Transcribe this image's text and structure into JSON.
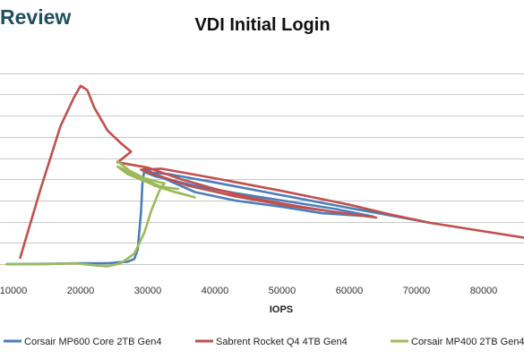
{
  "brand": {
    "text": "Review"
  },
  "chart_data": {
    "type": "line",
    "title": "VDI Initial Login",
    "xlabel": "IOPS",
    "ylabel": "",
    "xlim": [
      8000,
      86000
    ],
    "ylim": [
      0,
      10.5
    ],
    "x_ticks": [
      10000,
      20000,
      30000,
      40000,
      50000,
      60000,
      70000,
      80000
    ],
    "y_gridlines": [
      0.5,
      1.5,
      2.5,
      3.5,
      4.5,
      5.5,
      6.5,
      7.5,
      8.5,
      9.5
    ],
    "grid": true,
    "legend_position": "bottom",
    "series": [
      {
        "name": "Corsair MP600 Core 2TB Gen4",
        "color": "#4a7ebb",
        "points": [
          [
            9000,
            0.5
          ],
          [
            15000,
            0.52
          ],
          [
            20000,
            0.55
          ],
          [
            24000,
            0.55
          ],
          [
            27000,
            0.62
          ],
          [
            28000,
            0.75
          ],
          [
            28500,
            1.2
          ],
          [
            29000,
            3.0
          ],
          [
            29200,
            4.3
          ],
          [
            29500,
            5.0
          ],
          [
            32000,
            4.6
          ],
          [
            37000,
            3.9
          ],
          [
            43000,
            3.5
          ],
          [
            50000,
            3.2
          ],
          [
            56000,
            2.9
          ],
          [
            63500,
            2.75
          ],
          [
            58000,
            3.1
          ],
          [
            50000,
            3.5
          ],
          [
            43000,
            3.85
          ],
          [
            37000,
            4.2
          ],
          [
            31000,
            4.65
          ],
          [
            29500,
            4.85
          ],
          [
            33000,
            4.75
          ],
          [
            40000,
            4.35
          ],
          [
            50000,
            3.75
          ],
          [
            60000,
            3.15
          ],
          [
            67000,
            2.75
          ],
          [
            72000,
            2.45
          ]
        ]
      },
      {
        "name": "Sabrent Rocket Q4 4TB Gen4",
        "color": "#c0504d",
        "points": [
          [
            11000,
            0.8
          ],
          [
            14000,
            4.0
          ],
          [
            17000,
            7.0
          ],
          [
            19000,
            8.35
          ],
          [
            20000,
            8.9
          ],
          [
            21000,
            8.7
          ],
          [
            22000,
            7.9
          ],
          [
            24000,
            6.8
          ],
          [
            26000,
            6.2
          ],
          [
            27500,
            5.8
          ],
          [
            25500,
            5.3
          ],
          [
            30000,
            5.05
          ],
          [
            35000,
            4.5
          ],
          [
            40000,
            4.05
          ],
          [
            45000,
            3.65
          ],
          [
            52000,
            3.25
          ],
          [
            57000,
            3.0
          ],
          [
            64000,
            2.7
          ],
          [
            58000,
            2.95
          ],
          [
            50000,
            3.3
          ],
          [
            43000,
            3.7
          ],
          [
            36000,
            4.2
          ],
          [
            29000,
            4.95
          ],
          [
            32000,
            5.0
          ],
          [
            40000,
            4.55
          ],
          [
            50000,
            3.95
          ],
          [
            60000,
            3.3
          ],
          [
            66000,
            2.85
          ],
          [
            72000,
            2.45
          ],
          [
            78000,
            2.15
          ],
          [
            86000,
            1.75
          ]
        ]
      },
      {
        "name": "Corsair MP400 2TB Gen4",
        "color": "#9bbb59",
        "points": [
          [
            9000,
            0.5
          ],
          [
            15000,
            0.5
          ],
          [
            19000,
            0.55
          ],
          [
            22000,
            0.45
          ],
          [
            24000,
            0.4
          ],
          [
            26000,
            0.55
          ],
          [
            28000,
            1.0
          ],
          [
            29500,
            2.0
          ],
          [
            30500,
            3.0
          ],
          [
            31500,
            3.8
          ],
          [
            32000,
            4.15
          ],
          [
            32500,
            4.3
          ],
          [
            29500,
            4.55
          ],
          [
            27000,
            4.95
          ],
          [
            25500,
            5.35
          ],
          [
            28500,
            4.6
          ],
          [
            31000,
            4.2
          ],
          [
            34000,
            3.9
          ],
          [
            37000,
            3.65
          ],
          [
            33000,
            4.0
          ],
          [
            30000,
            4.35
          ],
          [
            27000,
            4.75
          ],
          [
            25500,
            5.1
          ],
          [
            29000,
            4.55
          ],
          [
            32000,
            4.15
          ],
          [
            34500,
            4.05
          ]
        ]
      }
    ]
  }
}
